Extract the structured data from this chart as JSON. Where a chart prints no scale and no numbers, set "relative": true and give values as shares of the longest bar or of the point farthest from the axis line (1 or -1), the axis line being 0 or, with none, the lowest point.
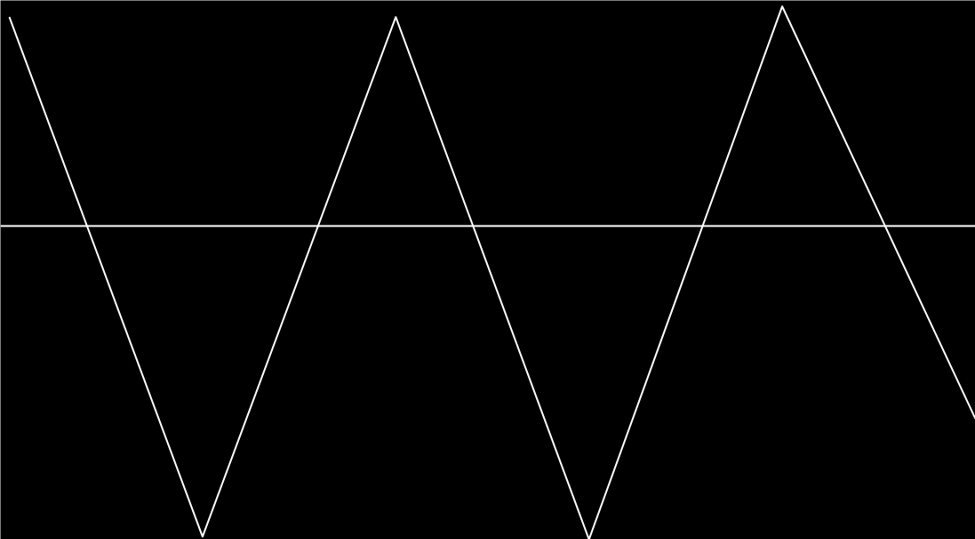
{
  "chart_data": {
    "type": "line",
    "relative": true,
    "categories": [
      null,
      null,
      null,
      null,
      null,
      null
    ],
    "series": [
      {
        "color": "#ffffff",
        "values": [
          0.667,
          -0.991,
          0.667,
          -1,
          0.701,
          -0.615
        ]
      }
    ]
  }
}
